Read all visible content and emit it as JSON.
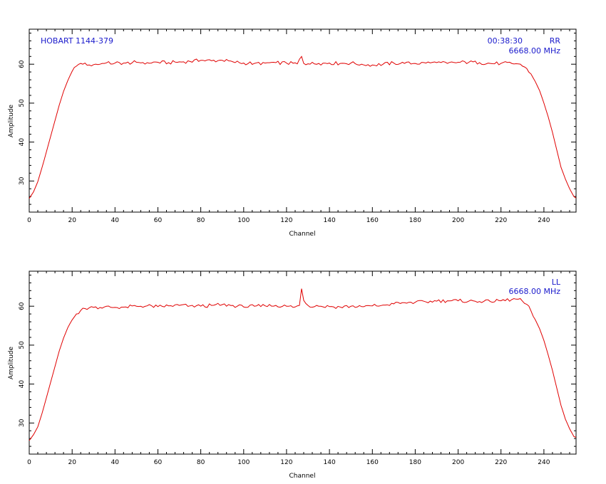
{
  "colors": {
    "trace": "#e00000",
    "annotation": "#1a1acc",
    "axis": "#000000"
  },
  "chart_data": [
    {
      "type": "line",
      "title": "",
      "source_label": "HOBART 1144-379",
      "time_label": "00:38:30",
      "pol_label": "RR",
      "freq_label": "6668.00 MHz",
      "xlabel": "Channel",
      "ylabel": "Amplitude",
      "xlim": [
        0,
        255
      ],
      "ylim": [
        22,
        69
      ],
      "xticks": [
        0,
        20,
        40,
        60,
        80,
        100,
        120,
        140,
        160,
        180,
        200,
        220,
        240
      ],
      "yticks": [
        30,
        40,
        50,
        60
      ],
      "grid": false,
      "series": [
        {
          "x": [
            0,
            2,
            4,
            6,
            8,
            10,
            12,
            14,
            16,
            18,
            20,
            22,
            24,
            26,
            28,
            30,
            35,
            40,
            45,
            50,
            55,
            60,
            65,
            70,
            75,
            80,
            85,
            90,
            95,
            100,
            105,
            110,
            115,
            120,
            125,
            127,
            128,
            130,
            135,
            140,
            145,
            150,
            155,
            160,
            165,
            170,
            175,
            180,
            185,
            190,
            195,
            200,
            205,
            210,
            215,
            220,
            225,
            228,
            230,
            232,
            234,
            236,
            238,
            240,
            242,
            244,
            246,
            248,
            250,
            252,
            254,
            255
          ],
          "y": [
            25.5,
            27.2,
            29.8,
            33.5,
            37.5,
            41.5,
            45.5,
            49.5,
            53,
            55.8,
            58.2,
            59.5,
            60.2,
            60.3,
            59.8,
            59.9,
            60.2,
            60.3,
            60.3,
            60.5,
            60.4,
            60.5,
            60.4,
            60.6,
            60.7,
            61,
            60.9,
            61,
            60.6,
            60.3,
            60.2,
            60.3,
            60.4,
            60.3,
            60.1,
            62,
            60.2,
            60.1,
            60.2,
            60.3,
            60.2,
            60.3,
            60,
            59.8,
            60,
            60.3,
            60.2,
            60.2,
            60.3,
            60.4,
            60.2,
            60.5,
            60.5,
            60.4,
            60.2,
            60.2,
            60.2,
            60.1,
            59.5,
            58.9,
            57.5,
            55.5,
            53.2,
            50,
            46.5,
            42.5,
            38,
            33.5,
            30.5,
            28,
            26,
            25.6
          ]
        }
      ]
    },
    {
      "type": "line",
      "title": "",
      "pol_label": "LL",
      "freq_label": "6668.00 MHz",
      "xlabel": "Channel",
      "ylabel": "Amplitude",
      "xlim": [
        0,
        255
      ],
      "ylim": [
        22,
        69
      ],
      "xticks": [
        0,
        20,
        40,
        60,
        80,
        100,
        120,
        140,
        160,
        180,
        200,
        220,
        240
      ],
      "yticks": [
        30,
        40,
        50,
        60
      ],
      "grid": false,
      "series": [
        {
          "x": [
            0,
            2,
            4,
            6,
            8,
            10,
            12,
            14,
            16,
            18,
            20,
            22,
            24,
            26,
            28,
            30,
            35,
            40,
            45,
            50,
            55,
            60,
            65,
            70,
            75,
            80,
            85,
            90,
            95,
            100,
            105,
            110,
            115,
            120,
            124,
            126,
            127,
            128,
            130,
            135,
            140,
            145,
            150,
            155,
            160,
            165,
            170,
            175,
            180,
            185,
            190,
            195,
            200,
            205,
            210,
            215,
            220,
            225,
            228,
            230,
            232,
            234,
            236,
            238,
            240,
            242,
            244,
            246,
            248,
            250,
            252,
            254,
            255
          ],
          "y": [
            25.5,
            27,
            29,
            32.5,
            36.5,
            40.5,
            44.5,
            48.5,
            51.8,
            54.5,
            56.5,
            58,
            58.9,
            59.4,
            59.6,
            59.7,
            59.8,
            59.7,
            59.8,
            60,
            60.1,
            59.9,
            60.1,
            60.2,
            60.1,
            60,
            60.2,
            60.4,
            60.2,
            59.8,
            60,
            60.1,
            60.2,
            60,
            59.8,
            60.2,
            64.5,
            61.5,
            60.2,
            60,
            59.9,
            59.8,
            60,
            59.9,
            60.1,
            60.3,
            60.6,
            60.9,
            61,
            61.1,
            61.3,
            61.4,
            61.4,
            61.3,
            61.2,
            61.2,
            61.4,
            61.7,
            61.8,
            61.3,
            60.5,
            58.8,
            56.5,
            54.2,
            51.2,
            47.5,
            43.5,
            39,
            34.5,
            31,
            28.5,
            26.5,
            26.3
          ]
        }
      ]
    }
  ]
}
